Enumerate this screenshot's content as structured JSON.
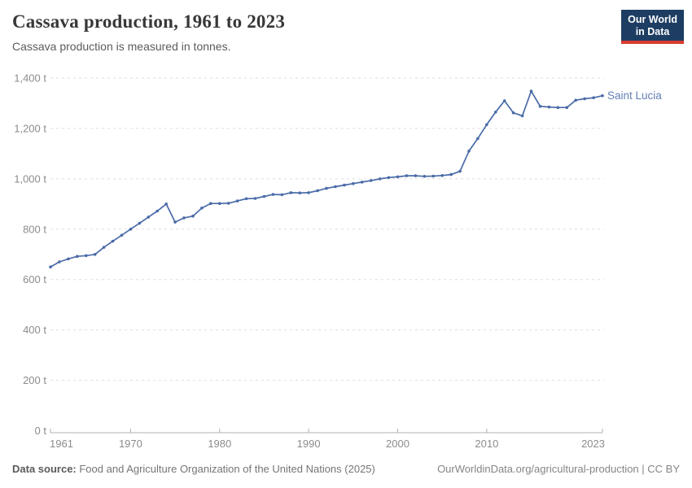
{
  "header": {
    "title": "Cassava production, 1961 to 2023",
    "subtitle": "Cassava production is measured in tonnes.",
    "logo": {
      "line1": "Our World",
      "line2": "in Data"
    }
  },
  "chart_data": {
    "type": "line",
    "title": "Cassava production, 1961 to 2023",
    "ylabel": "",
    "xlabel": "",
    "unit": "t",
    "grid": "horizontal-dashed",
    "legend_position": "end-of-line-label",
    "xlim": [
      1961,
      2023
    ],
    "ylim": [
      0,
      1400
    ],
    "yticks": [
      0,
      200,
      400,
      600,
      800,
      1000,
      1200,
      1400
    ],
    "xticks": [
      1961,
      1970,
      1980,
      1990,
      2000,
      2010,
      2023
    ],
    "x": [
      1961,
      1962,
      1963,
      1964,
      1965,
      1966,
      1967,
      1968,
      1969,
      1970,
      1971,
      1972,
      1973,
      1974,
      1975,
      1976,
      1977,
      1978,
      1979,
      1980,
      1981,
      1982,
      1983,
      1984,
      1985,
      1986,
      1987,
      1988,
      1989,
      1990,
      1991,
      1992,
      1993,
      1994,
      1995,
      1996,
      1997,
      1998,
      1999,
      2000,
      2001,
      2002,
      2003,
      2004,
      2005,
      2006,
      2007,
      2008,
      2009,
      2010,
      2011,
      2012,
      2013,
      2014,
      2015,
      2016,
      2017,
      2018,
      2019,
      2020,
      2021,
      2022,
      2023
    ],
    "series": [
      {
        "name": "Saint Lucia",
        "color": "#4a6ba8",
        "label_color": "#6380b5",
        "values": [
          650,
          670,
          682,
          692,
          695,
          700,
          728,
          752,
          776,
          800,
          824,
          848,
          872,
          900,
          828,
          845,
          852,
          884,
          902,
          902,
          903,
          912,
          921,
          922,
          930,
          938,
          937,
          945,
          944,
          945,
          953,
          962,
          969,
          975,
          981,
          987,
          993,
          1000,
          1005,
          1008,
          1012,
          1012,
          1010,
          1011,
          1013,
          1017,
          1030,
          1110,
          1160,
          1215,
          1265,
          1310,
          1262,
          1250,
          1348,
          1288,
          1285,
          1283,
          1283,
          1312,
          1318,
          1322,
          1330
        ]
      }
    ]
  },
  "footer": {
    "source_label": "Data source:",
    "source_text": " Food and Agriculture Organization of the United Nations (2025)",
    "link_text": "OurWorldinData.org/agricultural-production | CC BY"
  },
  "colors": {
    "title": "#383838",
    "subtitle": "#5b5b5b",
    "axis_text": "#8c8c8c",
    "gridline": "#dedede",
    "axis_line": "#b0b0b0",
    "line": "#4a6ba8",
    "entity_label": "#6380b5",
    "logo_bg": "#1d3d63",
    "logo_red": "#d83c31"
  }
}
